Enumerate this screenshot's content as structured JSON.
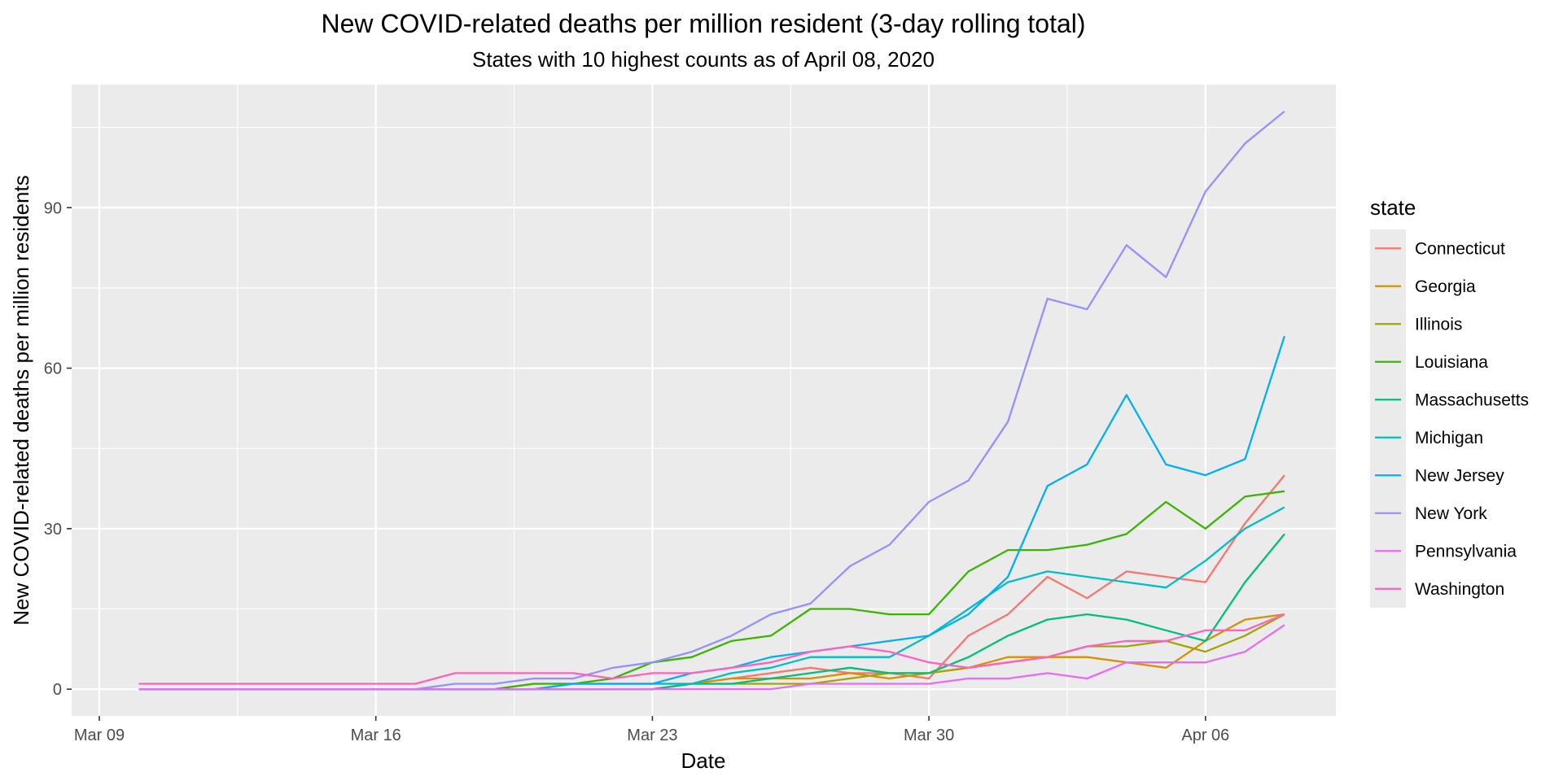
{
  "chart_data": {
    "type": "line",
    "title": "New COVID-related deaths per million resident (3-day rolling total)",
    "subtitle": "States with 10 highest counts as of April 08, 2020",
    "xlabel": "Date",
    "ylabel": "New COVID-related deaths per million residents",
    "x_ticks": [
      "Mar 09",
      "Mar 16",
      "Mar 23",
      "Mar 30",
      "Apr 06"
    ],
    "y_ticks": [
      0,
      30,
      60,
      90
    ],
    "ylim": [
      -5,
      113
    ],
    "grid": true,
    "legend_title": "state",
    "legend_position": "right",
    "x": [
      "Mar 10",
      "Mar 11",
      "Mar 12",
      "Mar 13",
      "Mar 14",
      "Mar 15",
      "Mar 16",
      "Mar 17",
      "Mar 18",
      "Mar 19",
      "Mar 20",
      "Mar 21",
      "Mar 22",
      "Mar 23",
      "Mar 24",
      "Mar 25",
      "Mar 26",
      "Mar 27",
      "Mar 28",
      "Mar 29",
      "Mar 30",
      "Mar 31",
      "Apr 01",
      "Apr 02",
      "Apr 03",
      "Apr 04",
      "Apr 05",
      "Apr 06",
      "Apr 07",
      "Apr 08"
    ],
    "series": [
      {
        "name": "Connecticut",
        "color": "#F8766D",
        "values": [
          0,
          0,
          0,
          0,
          0,
          0,
          0,
          0,
          0,
          0,
          0,
          0,
          0,
          0,
          1,
          2,
          3,
          4,
          3,
          3,
          2,
          10,
          14,
          21,
          17,
          22,
          21,
          20,
          31,
          40
        ]
      },
      {
        "name": "Georgia",
        "color": "#D89000",
        "values": [
          0,
          0,
          0,
          0,
          0,
          0,
          0,
          0,
          0,
          0,
          1,
          1,
          1,
          1,
          1,
          2,
          2,
          2,
          3,
          2,
          3,
          4,
          6,
          6,
          6,
          5,
          4,
          9,
          13,
          14
        ]
      },
      {
        "name": "Illinois",
        "color": "#A3A500",
        "values": [
          0,
          0,
          0,
          0,
          0,
          0,
          0,
          0,
          0,
          0,
          0,
          0,
          0,
          0,
          1,
          1,
          1,
          1,
          2,
          3,
          3,
          4,
          5,
          6,
          8,
          8,
          9,
          7,
          10,
          14
        ]
      },
      {
        "name": "Louisiana",
        "color": "#39B600",
        "values": [
          0,
          0,
          0,
          0,
          0,
          0,
          0,
          0,
          0,
          0,
          1,
          1,
          2,
          5,
          6,
          9,
          10,
          15,
          15,
          14,
          14,
          22,
          26,
          26,
          27,
          29,
          35,
          30,
          36,
          37
        ]
      },
      {
        "name": "Massachusetts",
        "color": "#00BF7D",
        "values": [
          0,
          0,
          0,
          0,
          0,
          0,
          0,
          0,
          0,
          0,
          0,
          0,
          0,
          0,
          1,
          1,
          2,
          3,
          4,
          3,
          3,
          6,
          10,
          13,
          14,
          13,
          11,
          9,
          20,
          29
        ]
      },
      {
        "name": "Michigan",
        "color": "#00BFC4",
        "values": [
          0,
          0,
          0,
          0,
          0,
          0,
          0,
          0,
          0,
          0,
          0,
          1,
          1,
          1,
          1,
          3,
          4,
          6,
          6,
          6,
          10,
          15,
          20,
          22,
          21,
          20,
          19,
          24,
          30,
          34
        ]
      },
      {
        "name": "New Jersey",
        "color": "#00B0F6",
        "values": [
          0,
          0,
          0,
          0,
          0,
          0,
          0,
          0,
          0,
          0,
          0,
          1,
          1,
          1,
          3,
          4,
          6,
          7,
          8,
          9,
          10,
          14,
          21,
          38,
          42,
          55,
          42,
          40,
          43,
          66
        ]
      },
      {
        "name": "New York",
        "color": "#9590FF",
        "values": [
          0,
          0,
          0,
          0,
          0,
          0,
          0,
          0,
          1,
          1,
          2,
          2,
          4,
          5,
          7,
          10,
          14,
          16,
          23,
          27,
          35,
          39,
          50,
          73,
          71,
          83,
          77,
          93,
          102,
          108
        ]
      },
      {
        "name": "Pennsylvania",
        "color": "#E76BF3",
        "values": [
          0,
          0,
          0,
          0,
          0,
          0,
          0,
          0,
          0,
          0,
          0,
          0,
          0,
          0,
          0,
          0,
          0,
          1,
          1,
          1,
          1,
          2,
          2,
          3,
          2,
          5,
          5,
          5,
          7,
          12
        ]
      },
      {
        "name": "Washington",
        "color": "#FF62BC",
        "values": [
          1,
          1,
          1,
          1,
          1,
          1,
          1,
          1,
          3,
          3,
          3,
          3,
          2,
          3,
          3,
          4,
          5,
          7,
          8,
          7,
          5,
          4,
          5,
          6,
          8,
          9,
          9,
          11,
          11,
          14
        ]
      }
    ]
  }
}
